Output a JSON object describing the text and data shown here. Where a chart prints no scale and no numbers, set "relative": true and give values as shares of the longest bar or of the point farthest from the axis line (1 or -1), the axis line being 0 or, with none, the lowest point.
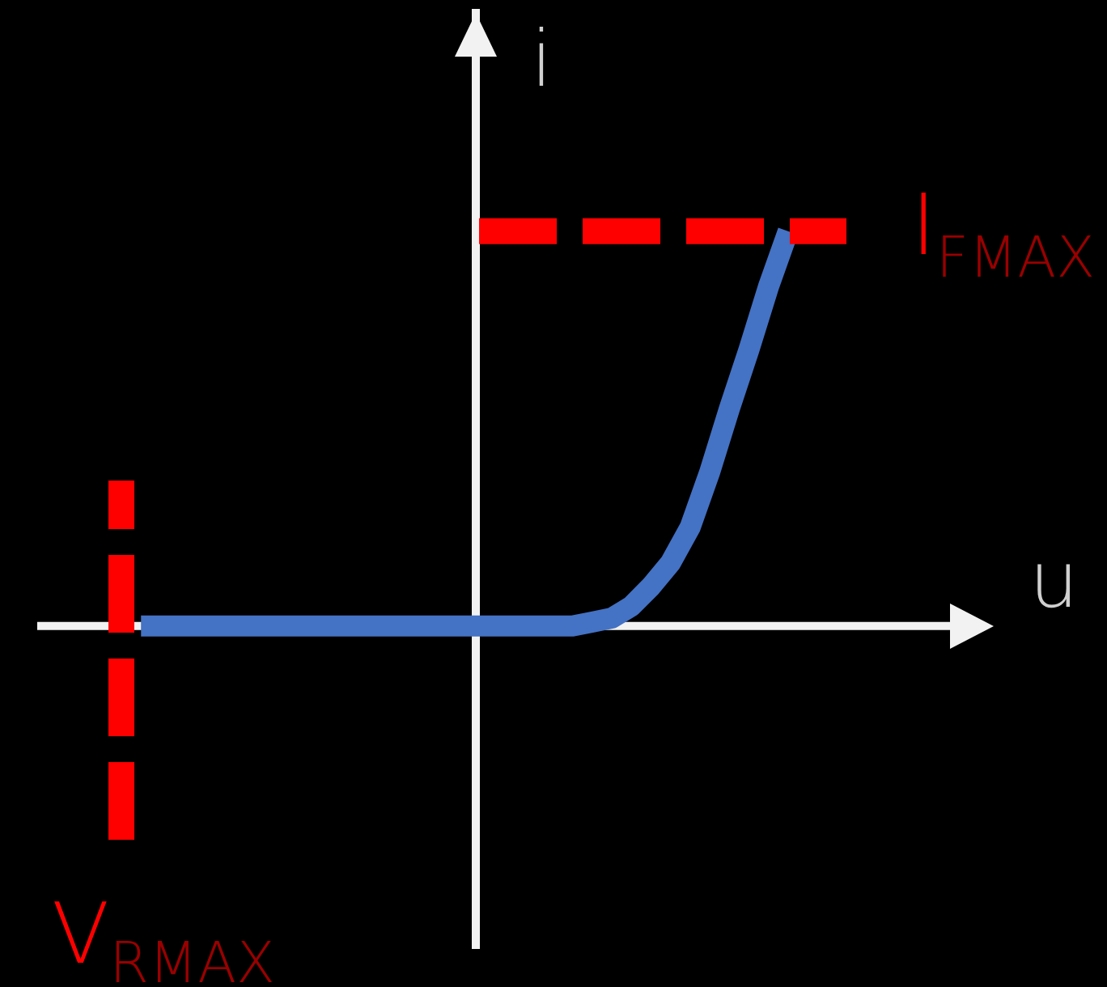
{
  "chart_data": {
    "type": "line",
    "xlabel": "u",
    "ylabel": "i",
    "relative": true,
    "marker": "none",
    "line_style": "solid",
    "categories": [
      null,
      null,
      null,
      null,
      null,
      null,
      null,
      null,
      null,
      null,
      null,
      null,
      null,
      null,
      null,
      null,
      null,
      null,
      null,
      null,
      null,
      null,
      null,
      null,
      null,
      null,
      null,
      null,
      null,
      null,
      null,
      null,
      null,
      null,
      null
    ],
    "series": [
      {
        "color": "#4472c4",
        "values": [
          null,
          0,
          0,
          0,
          0,
          0,
          0,
          0,
          0,
          0,
          0,
          0,
          0,
          0,
          0,
          0,
          0,
          0,
          0,
          0,
          0,
          0,
          0,
          0,
          0.01,
          0.02,
          0.05,
          0.1,
          0.16,
          0.25,
          0.39,
          0.55,
          0.7,
          0.86,
          1
        ]
      }
    ],
    "ref_lines": [
      {
        "axis": "y",
        "value": 1,
        "label": "I$_{FMAX}$",
        "color": "#ff0000",
        "line_style": "dashed"
      }
    ],
    "annotations": [
      "V$_{RMAX}$"
    ]
  }
}
